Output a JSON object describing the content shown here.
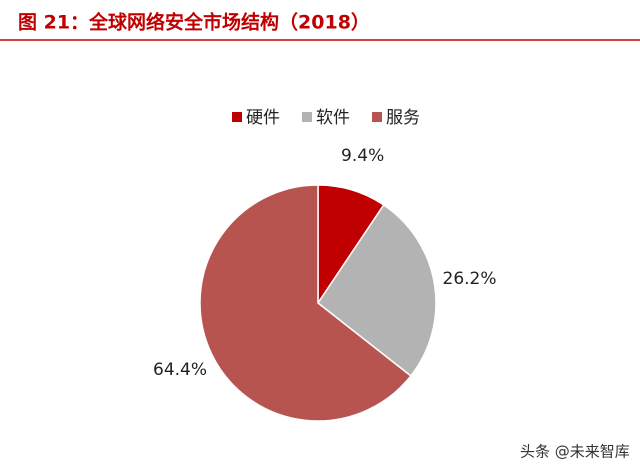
{
  "chart_data": {
    "type": "pie",
    "title": "图 21：全球网络安全市场结构（2018）",
    "categories": [
      "硬件",
      "软件",
      "服务"
    ],
    "values": [
      9.4,
      26.2,
      64.4
    ],
    "value_labels": [
      "9.4%",
      "26.2%",
      "64.4%"
    ],
    "colors": [
      "#c00000",
      "#b3b3b3",
      "#b85450"
    ],
    "legend": "top",
    "watermark": "头条 @未来智库"
  }
}
